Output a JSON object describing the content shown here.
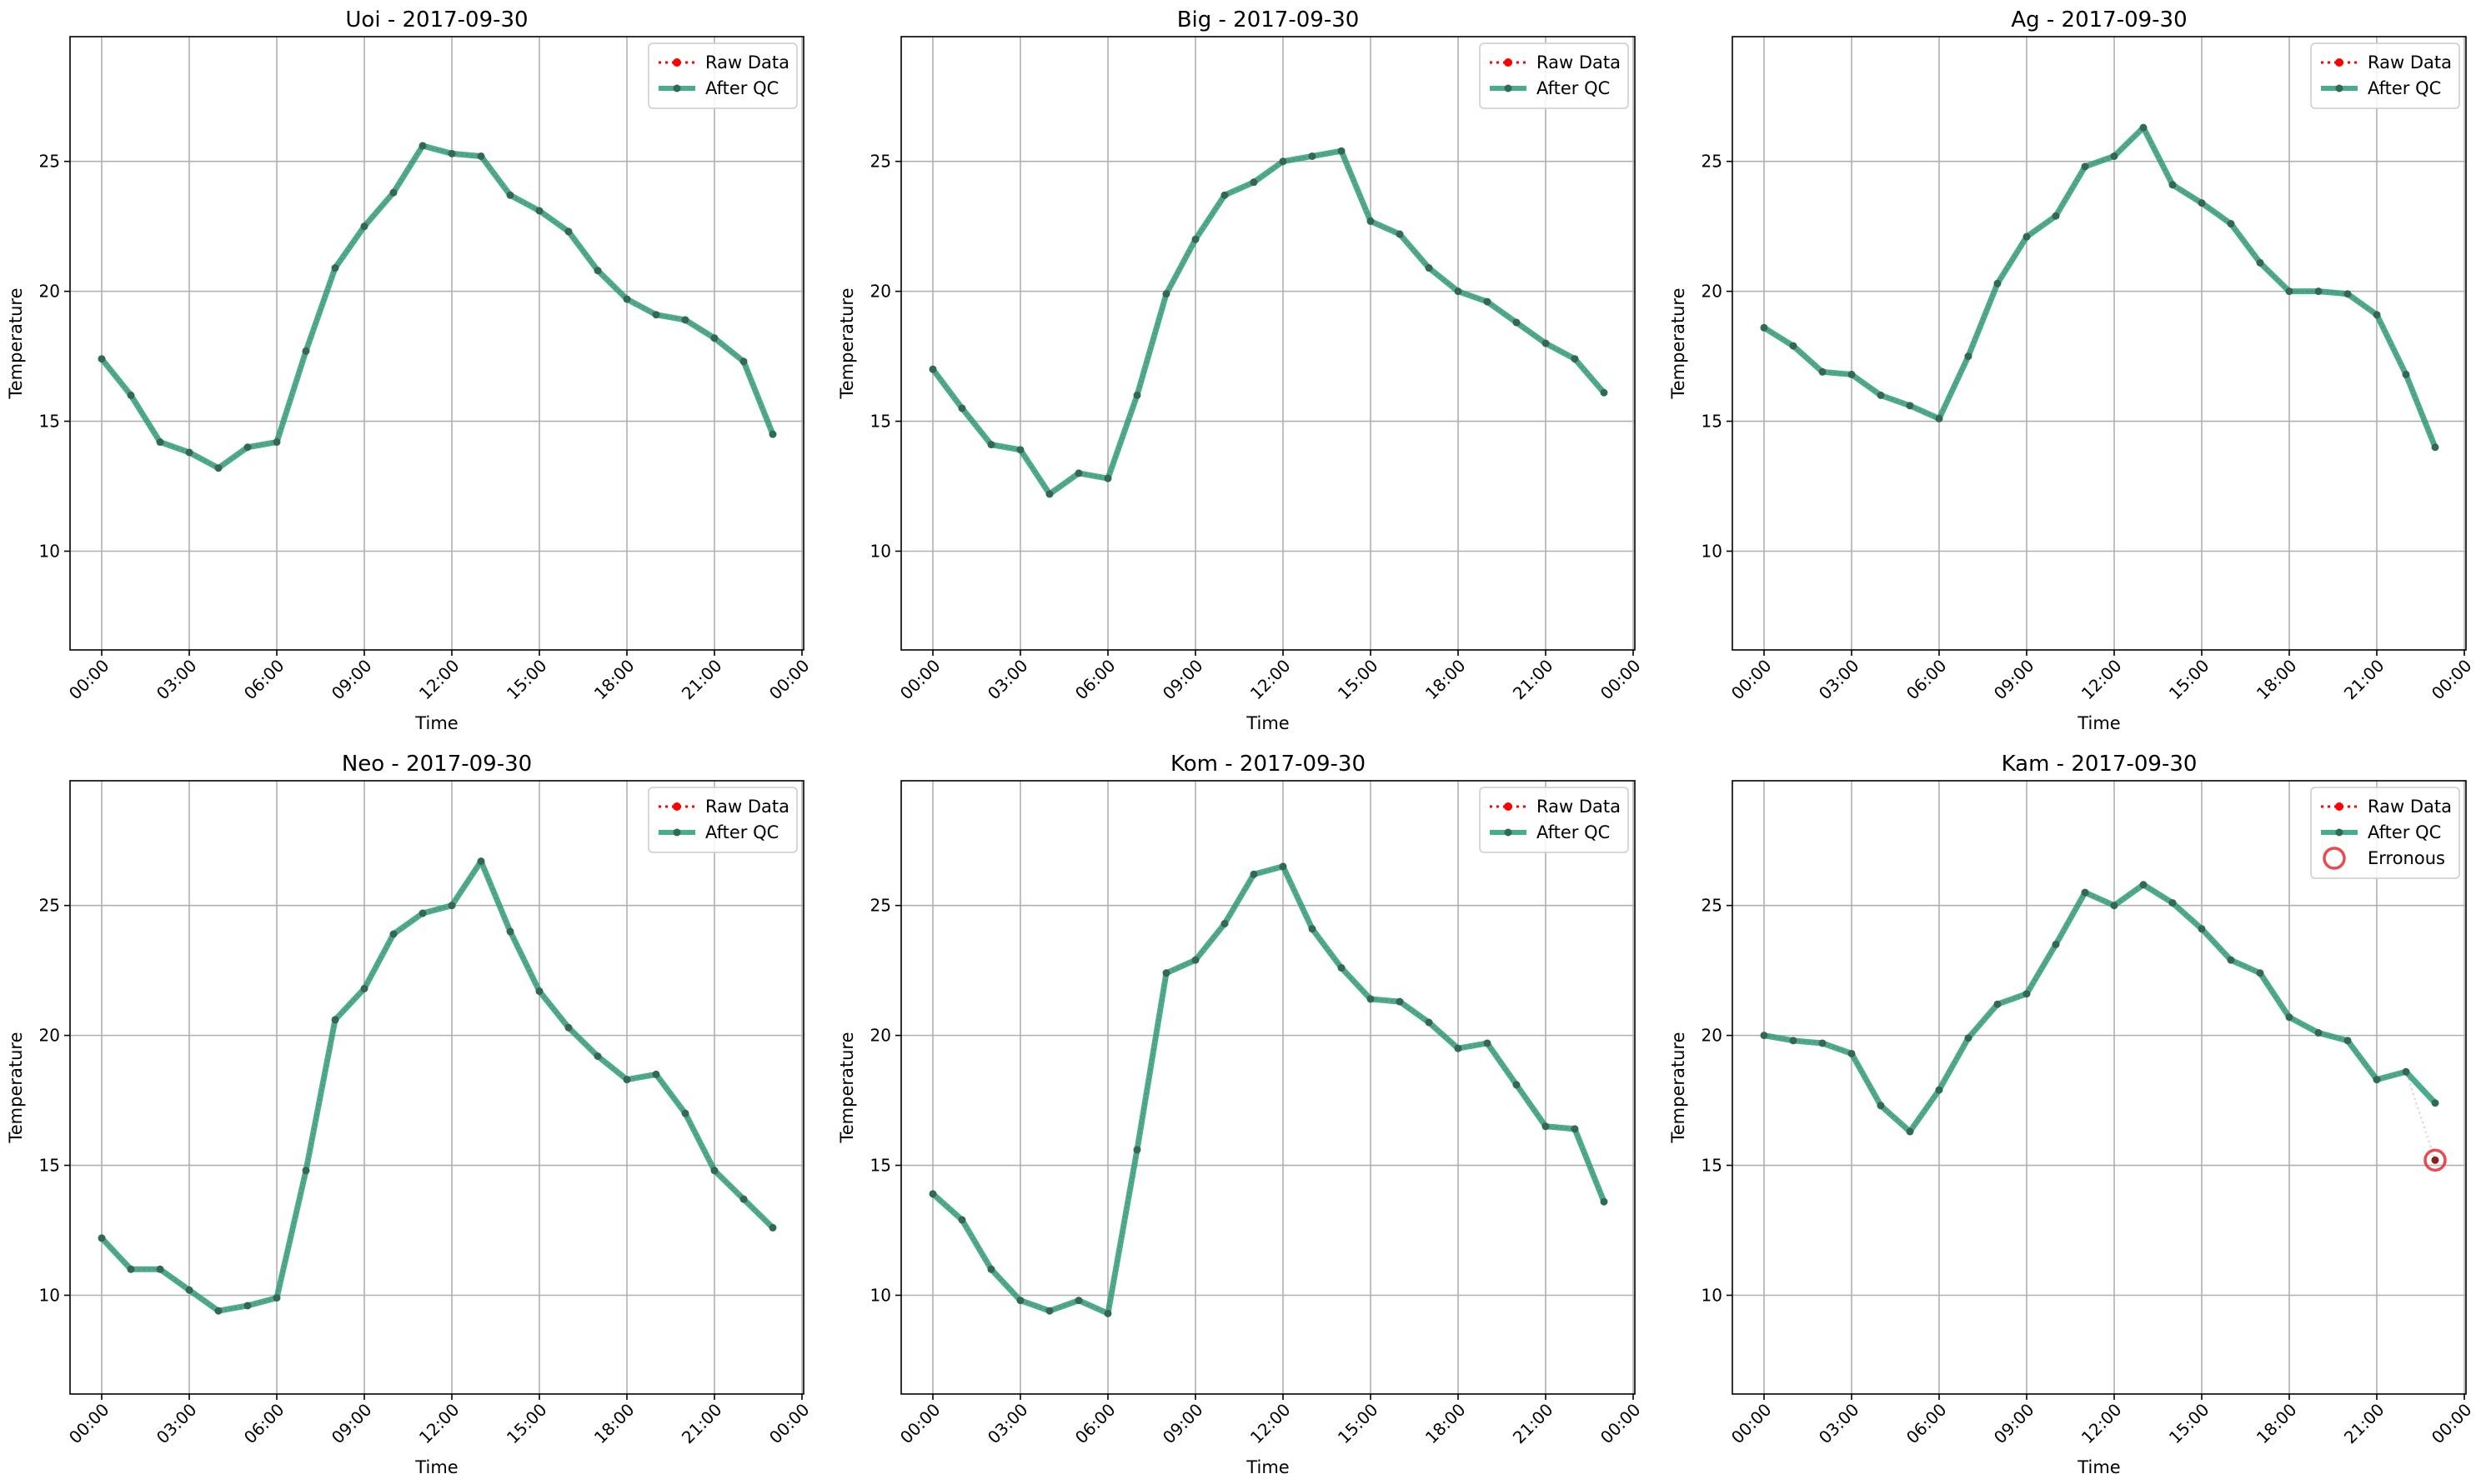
{
  "colors": {
    "raw": "#ff0000",
    "qc": "#2a9d7a",
    "qc_marker": "#2e6b55",
    "grid": "#b0b0b0",
    "erroneous": "#e8292f"
  },
  "chart_data": [
    {
      "type": "line",
      "title": "Uoi - 2017-09-30",
      "xlabel": "Time",
      "ylabel": "Temperature",
      "xticks": [
        "00:00",
        "03:00",
        "06:00",
        "09:00",
        "12:00",
        "15:00",
        "18:00",
        "21:00",
        "00:00"
      ],
      "yticks": [
        10,
        15,
        20,
        25
      ],
      "ylim": [
        6.2,
        29.8
      ],
      "grid": true,
      "legend_position": "upper right",
      "legend": [
        "Raw Data",
        "After QC"
      ],
      "x_hours": [
        0,
        1,
        2,
        3,
        4,
        5,
        6,
        7,
        8,
        9,
        10,
        11,
        12,
        13,
        14,
        15,
        16,
        17,
        18,
        19,
        20,
        21,
        22,
        23
      ],
      "series": [
        {
          "name": "Raw Data",
          "values": [
            17.4,
            16.0,
            14.2,
            13.8,
            13.2,
            14.0,
            14.2,
            17.7,
            20.9,
            22.5,
            23.8,
            25.6,
            25.3,
            25.2,
            23.7,
            23.1,
            22.3,
            20.8,
            19.7,
            19.1,
            18.9,
            18.2,
            17.3,
            14.5
          ]
        },
        {
          "name": "After QC",
          "values": [
            17.4,
            16.0,
            14.2,
            13.8,
            13.2,
            14.0,
            14.2,
            17.7,
            20.9,
            22.5,
            23.8,
            25.6,
            25.3,
            25.2,
            23.7,
            23.1,
            22.3,
            20.8,
            19.7,
            19.1,
            18.9,
            18.2,
            17.3,
            14.5
          ]
        }
      ]
    },
    {
      "type": "line",
      "title": "Big - 2017-09-30",
      "xlabel": "Time",
      "ylabel": "Temperature",
      "xticks": [
        "00:00",
        "03:00",
        "06:00",
        "09:00",
        "12:00",
        "15:00",
        "18:00",
        "21:00",
        "00:00"
      ],
      "yticks": [
        10,
        15,
        20,
        25
      ],
      "ylim": [
        6.2,
        29.8
      ],
      "grid": true,
      "legend_position": "upper right",
      "legend": [
        "Raw Data",
        "After QC"
      ],
      "x_hours": [
        0,
        1,
        2,
        3,
        4,
        5,
        6,
        7,
        8,
        9,
        10,
        11,
        12,
        13,
        14,
        15,
        16,
        17,
        18,
        19,
        20,
        21,
        22,
        23
      ],
      "series": [
        {
          "name": "Raw Data",
          "values": [
            17.0,
            15.5,
            14.1,
            13.9,
            12.2,
            13.0,
            12.8,
            16.0,
            19.9,
            22.0,
            23.7,
            24.2,
            25.0,
            25.2,
            25.4,
            22.7,
            22.2,
            20.9,
            20.0,
            19.6,
            18.8,
            18.0,
            17.4,
            16.1
          ]
        },
        {
          "name": "After QC",
          "values": [
            17.0,
            15.5,
            14.1,
            13.9,
            12.2,
            13.0,
            12.8,
            16.0,
            19.9,
            22.0,
            23.7,
            24.2,
            25.0,
            25.2,
            25.4,
            22.7,
            22.2,
            20.9,
            20.0,
            19.6,
            18.8,
            18.0,
            17.4,
            16.1
          ]
        }
      ]
    },
    {
      "type": "line",
      "title": "Ag - 2017-09-30",
      "xlabel": "Time",
      "ylabel": "Temperature",
      "xticks": [
        "00:00",
        "03:00",
        "06:00",
        "09:00",
        "12:00",
        "15:00",
        "18:00",
        "21:00",
        "00:00"
      ],
      "yticks": [
        10,
        15,
        20,
        25
      ],
      "ylim": [
        6.2,
        29.8
      ],
      "grid": true,
      "legend_position": "upper right",
      "legend": [
        "Raw Data",
        "After QC"
      ],
      "x_hours": [
        0,
        1,
        2,
        3,
        4,
        5,
        6,
        7,
        8,
        9,
        10,
        11,
        12,
        13,
        14,
        15,
        16,
        17,
        18,
        19,
        20,
        21,
        22,
        23
      ],
      "series": [
        {
          "name": "Raw Data",
          "values": [
            18.6,
            17.9,
            16.9,
            16.8,
            16.0,
            15.6,
            15.1,
            17.5,
            20.3,
            22.1,
            22.9,
            24.8,
            25.2,
            26.3,
            24.1,
            23.4,
            22.6,
            21.1,
            20.0,
            20.0,
            19.9,
            19.1,
            16.8,
            14.0
          ]
        },
        {
          "name": "After QC",
          "values": [
            18.6,
            17.9,
            16.9,
            16.8,
            16.0,
            15.6,
            15.1,
            17.5,
            20.3,
            22.1,
            22.9,
            24.8,
            25.2,
            26.3,
            24.1,
            23.4,
            22.6,
            21.1,
            20.0,
            20.0,
            19.9,
            19.1,
            16.8,
            14.0
          ]
        }
      ]
    },
    {
      "type": "line",
      "title": "Neo - 2017-09-30",
      "xlabel": "Time",
      "ylabel": "Temperature",
      "xticks": [
        "00:00",
        "03:00",
        "06:00",
        "09:00",
        "12:00",
        "15:00",
        "18:00",
        "21:00",
        "00:00"
      ],
      "yticks": [
        10,
        15,
        20,
        25
      ],
      "ylim": [
        6.2,
        29.8
      ],
      "grid": true,
      "legend_position": "upper right",
      "legend": [
        "Raw Data",
        "After QC"
      ],
      "x_hours": [
        0,
        1,
        2,
        3,
        4,
        5,
        6,
        7,
        8,
        9,
        10,
        11,
        12,
        13,
        14,
        15,
        16,
        17,
        18,
        19,
        20,
        21,
        22,
        23
      ],
      "series": [
        {
          "name": "Raw Data",
          "values": [
            12.2,
            11.0,
            11.0,
            10.2,
            9.4,
            9.6,
            9.9,
            14.8,
            20.6,
            21.8,
            23.9,
            24.7,
            25.0,
            26.7,
            24.0,
            21.7,
            20.3,
            19.2,
            18.3,
            18.5,
            17.0,
            14.8,
            13.7,
            12.6
          ]
        },
        {
          "name": "After QC",
          "values": [
            12.2,
            11.0,
            11.0,
            10.2,
            9.4,
            9.6,
            9.9,
            14.8,
            20.6,
            21.8,
            23.9,
            24.7,
            25.0,
            26.7,
            24.0,
            21.7,
            20.3,
            19.2,
            18.3,
            18.5,
            17.0,
            14.8,
            13.7,
            12.6
          ]
        }
      ]
    },
    {
      "type": "line",
      "title": "Kom - 2017-09-30",
      "xlabel": "Time",
      "ylabel": "Temperature",
      "xticks": [
        "00:00",
        "03:00",
        "06:00",
        "09:00",
        "12:00",
        "15:00",
        "18:00",
        "21:00",
        "00:00"
      ],
      "yticks": [
        10,
        15,
        20,
        25
      ],
      "ylim": [
        6.2,
        29.8
      ],
      "grid": true,
      "legend_position": "upper right",
      "legend": [
        "Raw Data",
        "After QC"
      ],
      "x_hours": [
        0,
        1,
        2,
        3,
        4,
        5,
        6,
        7,
        8,
        9,
        10,
        11,
        12,
        13,
        14,
        15,
        16,
        17,
        18,
        19,
        20,
        21,
        22,
        23
      ],
      "series": [
        {
          "name": "Raw Data",
          "values": [
            13.9,
            12.9,
            11.0,
            9.8,
            9.4,
            9.8,
            9.3,
            15.6,
            22.4,
            22.9,
            24.3,
            26.2,
            26.5,
            24.1,
            22.6,
            21.4,
            21.3,
            20.5,
            19.5,
            19.7,
            18.1,
            16.5,
            16.4,
            13.6
          ]
        },
        {
          "name": "After QC",
          "values": [
            13.9,
            12.9,
            11.0,
            9.8,
            9.4,
            9.8,
            9.3,
            15.6,
            22.4,
            22.9,
            24.3,
            26.2,
            26.5,
            24.1,
            22.6,
            21.4,
            21.3,
            20.5,
            19.5,
            19.7,
            18.1,
            16.5,
            16.4,
            13.6
          ]
        }
      ]
    },
    {
      "type": "line",
      "title": "Kam - 2017-09-30",
      "xlabel": "Time",
      "ylabel": "Temperature",
      "xticks": [
        "00:00",
        "03:00",
        "06:00",
        "09:00",
        "12:00",
        "15:00",
        "18:00",
        "21:00",
        "00:00"
      ],
      "yticks": [
        10,
        15,
        20,
        25
      ],
      "ylim": [
        6.2,
        29.8
      ],
      "grid": true,
      "legend_position": "upper right",
      "legend": [
        "Raw Data",
        "After QC",
        "Erronous"
      ],
      "x_hours": [
        0,
        1,
        2,
        3,
        4,
        5,
        6,
        7,
        8,
        9,
        10,
        11,
        12,
        13,
        14,
        15,
        16,
        17,
        18,
        19,
        20,
        21,
        22,
        23
      ],
      "series": [
        {
          "name": "Raw Data",
          "values": [
            20.0,
            19.8,
            19.7,
            19.3,
            17.3,
            16.3,
            17.9,
            19.9,
            21.2,
            21.6,
            23.5,
            25.5,
            25.0,
            25.8,
            25.1,
            24.1,
            22.9,
            22.4,
            20.7,
            20.1,
            19.8,
            18.3,
            18.6,
            15.2
          ]
        },
        {
          "name": "After QC",
          "values": [
            20.0,
            19.8,
            19.7,
            19.3,
            17.3,
            16.3,
            17.9,
            19.9,
            21.2,
            21.6,
            23.5,
            25.5,
            25.0,
            25.8,
            25.1,
            24.1,
            22.9,
            22.4,
            20.7,
            20.1,
            19.8,
            18.3,
            18.6,
            17.4
          ]
        },
        {
          "name": "Erronous",
          "points": [
            {
              "x": 23,
              "y": 15.2
            }
          ]
        }
      ]
    }
  ]
}
